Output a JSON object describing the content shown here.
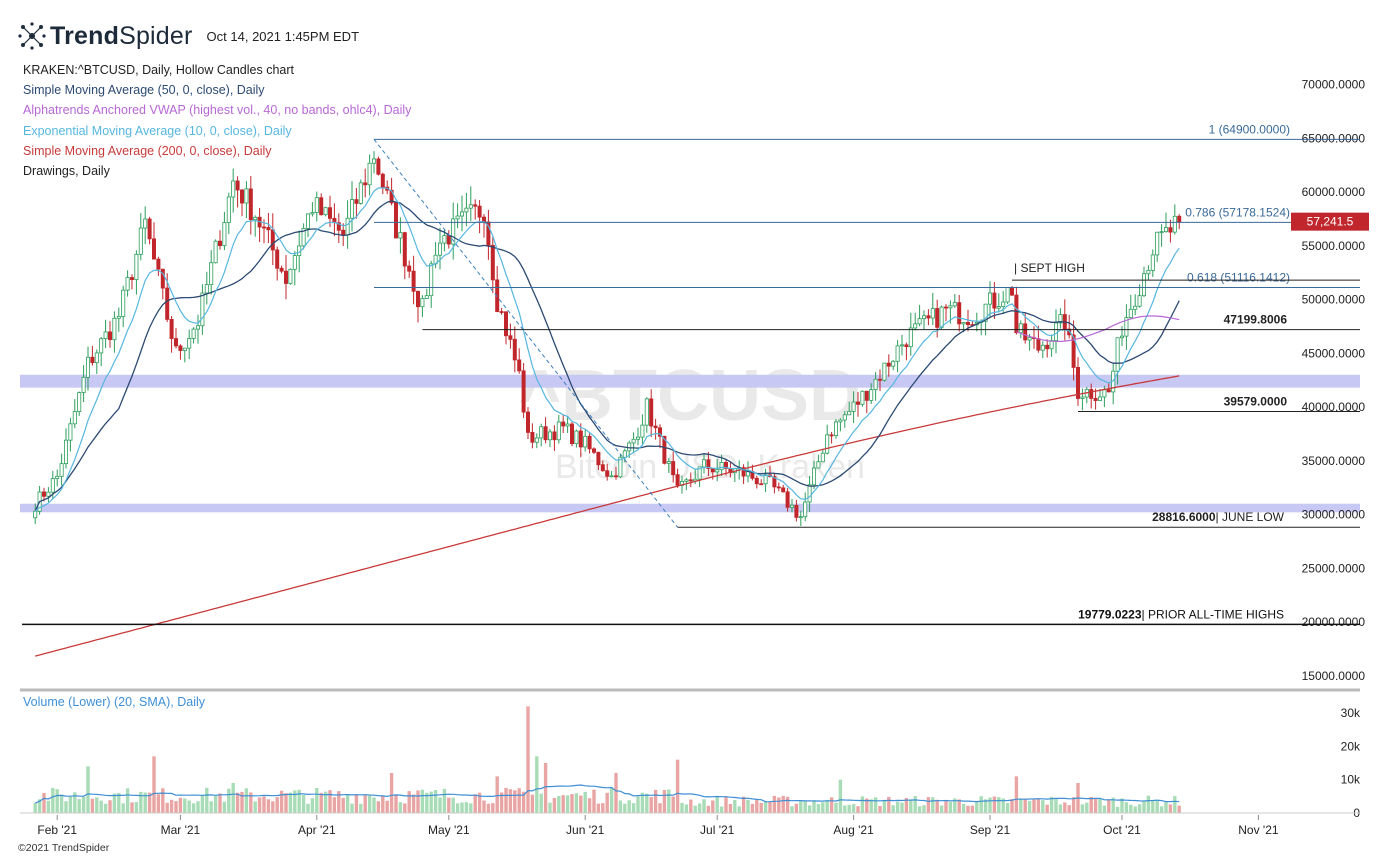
{
  "header": {
    "brand_bold": "Trend",
    "brand_light": "Spider",
    "timestamp": "Oct 14, 2021 1:45PM EDT"
  },
  "legend": [
    {
      "text": "KRAKEN:^BTCUSD, Daily, Hollow Candles chart",
      "color": "#222222"
    },
    {
      "text": "Simple Moving Average (50, 0, close), Daily",
      "color": "#2c4a73"
    },
    {
      "text": "Alphatrends Anchored VWAP (highest vol., 40, no bands, ohlc4), Daily",
      "color": "#b868d6"
    },
    {
      "text": "Exponential Moving Average (10, 0, close), Daily",
      "color": "#56b7e0"
    },
    {
      "text": "Simple Moving Average (200, 0, close), Daily",
      "color": "#c83a3a"
    },
    {
      "text": "Drawings, Daily",
      "color": "#222222"
    }
  ],
  "watermark": {
    "symbol": "^BTCUSD",
    "sub": "Bitcoin USD, Kraken"
  },
  "copyright": "©2021 TrendSpider",
  "volume_label": "Volume (Lower) (20, SMA), Daily",
  "chart_data": {
    "type": "candlestick",
    "symbol": "KRAKEN:^BTCUSD",
    "interval": "Daily",
    "ylim": [
      13000,
      73000
    ],
    "y_ticks": [
      "70000.0000",
      "65000.0000",
      "60000.0000",
      "55000.0000",
      "50000.0000",
      "45000.0000",
      "40000.0000",
      "35000.0000",
      "30000.0000",
      "25000.0000",
      "20000.0000",
      "15000.0000"
    ],
    "x_labels": [
      {
        "label": "Feb '21",
        "date": "2021-02-01"
      },
      {
        "label": "Mar '21",
        "date": "2021-03-01"
      },
      {
        "label": "Apr '21",
        "date": "2021-04-01"
      },
      {
        "label": "May '21",
        "date": "2021-05-01"
      },
      {
        "label": "Jun '21",
        "date": "2021-06-01"
      },
      {
        "label": "Jul '21",
        "date": "2021-07-01"
      },
      {
        "label": "Aug '21",
        "date": "2021-08-01"
      },
      {
        "label": "Sep '21",
        "date": "2021-09-01"
      },
      {
        "label": "Oct '21",
        "date": "2021-10-01"
      },
      {
        "label": "Nov '21",
        "date": "2021-11-01"
      }
    ],
    "price_path": [
      [
        "2021-01-27",
        31000
      ],
      [
        "2021-02-01",
        33500
      ],
      [
        "2021-02-08",
        44000
      ],
      [
        "2021-02-15",
        48500
      ],
      [
        "2021-02-21",
        57000
      ],
      [
        "2021-02-28",
        45000
      ],
      [
        "2021-03-05",
        48000
      ],
      [
        "2021-03-13",
        61000
      ],
      [
        "2021-03-18",
        58000
      ],
      [
        "2021-03-25",
        52000
      ],
      [
        "2021-03-31",
        58800
      ],
      [
        "2021-04-07",
        56000
      ],
      [
        "2021-04-14",
        63500
      ],
      [
        "2021-04-18",
        58000
      ],
      [
        "2021-04-25",
        49000
      ],
      [
        "2021-04-28",
        55000
      ],
      [
        "2021-05-05",
        57500
      ],
      [
        "2021-05-09",
        58500
      ],
      [
        "2021-05-12",
        50000
      ],
      [
        "2021-05-17",
        43000
      ],
      [
        "2021-05-19",
        37000
      ],
      [
        "2021-05-22",
        37500
      ],
      [
        "2021-05-27",
        38000
      ],
      [
        "2021-06-01",
        36500
      ],
      [
        "2021-06-07",
        33500
      ],
      [
        "2021-06-12",
        37000
      ],
      [
        "2021-06-15",
        40000
      ],
      [
        "2021-06-19",
        35500
      ],
      [
        "2021-06-22",
        32000
      ],
      [
        "2021-06-28",
        34500
      ],
      [
        "2021-07-06",
        34000
      ],
      [
        "2021-07-13",
        32800
      ],
      [
        "2021-07-20",
        29800
      ],
      [
        "2021-07-26",
        37500
      ],
      [
        "2021-08-01",
        40000
      ],
      [
        "2021-08-06",
        42500
      ],
      [
        "2021-08-13",
        46500
      ],
      [
        "2021-08-22",
        49000
      ],
      [
        "2021-08-28",
        48500
      ],
      [
        "2021-09-06",
        51000
      ],
      [
        "2021-09-07",
        47000
      ],
      [
        "2021-09-12",
        45500
      ],
      [
        "2021-09-18",
        48000
      ],
      [
        "2021-09-21",
        41500
      ],
      [
        "2021-09-28",
        41300
      ],
      [
        "2021-10-01",
        47500
      ],
      [
        "2021-10-05",
        51500
      ],
      [
        "2021-10-08",
        54800
      ],
      [
        "2021-10-14",
        57241.5
      ]
    ],
    "levels": [
      {
        "label": "1 (64900.0000)",
        "value": 64900
      },
      {
        "label": "0.786 (57178.1524)",
        "value": 57178.1524
      },
      {
        "label": "0.618 (51116.1412)",
        "value": 51116.1412
      },
      {
        "label": "47199.8006",
        "value": 47199.8006
      },
      {
        "label": "39579.0000",
        "value": 39579
      },
      {
        "label": "28816.6000| JUNE LOW",
        "value": 28816.6
      },
      {
        "label": "19779.0223| PRIOR ALL-TIME HIGHS",
        "value": 19779.0223
      }
    ],
    "sept_high_label": "| SEPT HIGH",
    "support_zones": [
      [
        41800,
        43000
      ],
      [
        30200,
        31000
      ]
    ],
    "last_price": "57,241.5",
    "volume": {
      "y_ticks": [
        "30k",
        "20k",
        "10k",
        "0"
      ],
      "ylim": [
        0,
        36000
      ],
      "spikes": [
        [
          "2021-02-08",
          14000
        ],
        [
          "2021-02-23",
          17000
        ],
        [
          "2021-03-13",
          9000
        ],
        [
          "2021-04-18",
          12000
        ],
        [
          "2021-05-12",
          11000
        ],
        [
          "2021-05-19",
          32000
        ],
        [
          "2021-05-21",
          17000
        ],
        [
          "2021-05-23",
          15000
        ],
        [
          "2021-06-22",
          16000
        ],
        [
          "2021-06-08",
          12000
        ],
        [
          "2021-07-29",
          10000
        ],
        [
          "2021-09-07",
          11000
        ],
        [
          "2021-09-21",
          9000
        ]
      ]
    },
    "colors": {
      "up": "#2b9e5a",
      "down": "#c0262b",
      "sma50": "#2c4a73",
      "sma200": "#c83a3a",
      "ema10": "#56b7e0",
      "vwap": "#b868d6",
      "zone": "#c8c8f4"
    }
  }
}
